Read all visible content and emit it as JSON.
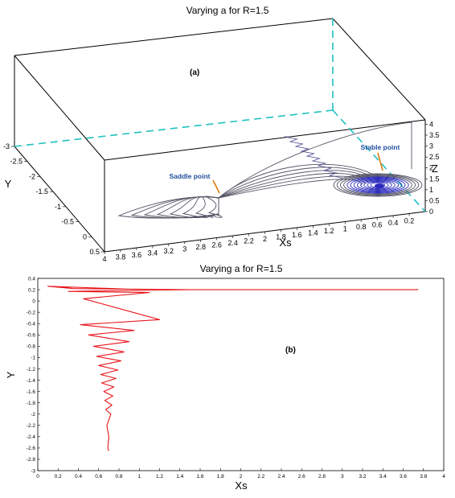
{
  "chart_data": [
    {
      "type": "line",
      "panel": "(a)",
      "title": "Varying a for R=1.5",
      "xlabel": "Xs",
      "ylabel": "Y",
      "zlabel": "Z",
      "x_ticks": [
        "0.2",
        "0.4",
        "0.6",
        "0.8",
        "1",
        "1.2",
        "1.4",
        "1.6",
        "1.8",
        "2",
        "2.2",
        "2.4",
        "2.6",
        "2.8",
        "3",
        "3.2",
        "3.4",
        "3.6",
        "3.8",
        "4"
      ],
      "y_ticks": [
        "-3",
        "-2.5",
        "-2",
        "-1.5",
        "-1",
        "-0.5",
        "0",
        "0.5"
      ],
      "z_ticks": [
        "0",
        "0.5",
        "1",
        "1.5",
        "2",
        "2.5",
        "3",
        "3.5",
        "4"
      ],
      "xlim": [
        0,
        4
      ],
      "ylim": [
        -3,
        0.5
      ],
      "zlim": [
        0,
        4.2
      ],
      "annotations": [
        {
          "text": "Saddle point",
          "x": 2.6,
          "z": 1.1
        },
        {
          "text": "Stable point",
          "x": 0.6,
          "z": 1.5
        }
      ],
      "colors": {
        "trajectory": "#555566",
        "attractor": "#2b2bbd",
        "dashed_box": "#1fc0c0",
        "arrow": "#e07a10"
      }
    },
    {
      "type": "line",
      "panel": "(b)",
      "title": "Varying a for R=1.5",
      "xlabel": "Xs",
      "ylabel": "Y",
      "xlim": [
        0,
        4
      ],
      "ylim": [
        -3,
        0.4
      ],
      "x_ticks": [
        "0",
        "0.2",
        "0.4",
        "0.6",
        "0.8",
        "1",
        "1.2",
        "1.4",
        "1.6",
        "1.8",
        "2",
        "2.2",
        "2.4",
        "2.6",
        "2.8",
        "3",
        "3.2",
        "3.4",
        "3.6",
        "3.8",
        "4"
      ],
      "y_ticks": [
        "0.4",
        "0.2",
        "0",
        "-0.2",
        "-0.4",
        "-0.6",
        "-0.8",
        "-1",
        "-1.2",
        "-1.4",
        "-1.6",
        "-1.8",
        "-2",
        "-2.2",
        "-2.4",
        "-2.6",
        "-2.8",
        "-3"
      ],
      "series": [
        {
          "color": "#e8141b",
          "points": [
            [
              3.75,
              0.2
            ],
            [
              2.6,
              0.2
            ],
            [
              1.4,
              0.2
            ],
            [
              0.9,
              0.21
            ],
            [
              0.1,
              0.26
            ],
            [
              0.35,
              0.22
            ],
            [
              1.5,
              0.2
            ],
            [
              0.3,
              0.17
            ],
            [
              1.1,
              0.15
            ],
            [
              0.45,
              0.04
            ],
            [
              1.2,
              -0.33
            ],
            [
              0.42,
              -0.42
            ],
            [
              0.95,
              -0.52
            ],
            [
              0.5,
              -0.6
            ],
            [
              0.9,
              -0.72
            ],
            [
              0.55,
              -0.8
            ],
            [
              0.85,
              -0.9
            ],
            [
              0.58,
              -0.98
            ],
            [
              0.82,
              -1.06
            ],
            [
              0.6,
              -1.14
            ],
            [
              0.79,
              -1.22
            ],
            [
              0.62,
              -1.3
            ],
            [
              0.77,
              -1.37
            ],
            [
              0.63,
              -1.45
            ],
            [
              0.75,
              -1.52
            ],
            [
              0.65,
              -1.6
            ],
            [
              0.74,
              -1.68
            ],
            [
              0.66,
              -1.76
            ],
            [
              0.73,
              -1.84
            ],
            [
              0.67,
              -1.92
            ],
            [
              0.72,
              -2.0
            ],
            [
              0.68,
              -2.2
            ],
            [
              0.7,
              -2.4
            ],
            [
              0.69,
              -2.6
            ],
            [
              0.7,
              -2.65
            ]
          ]
        }
      ]
    }
  ]
}
